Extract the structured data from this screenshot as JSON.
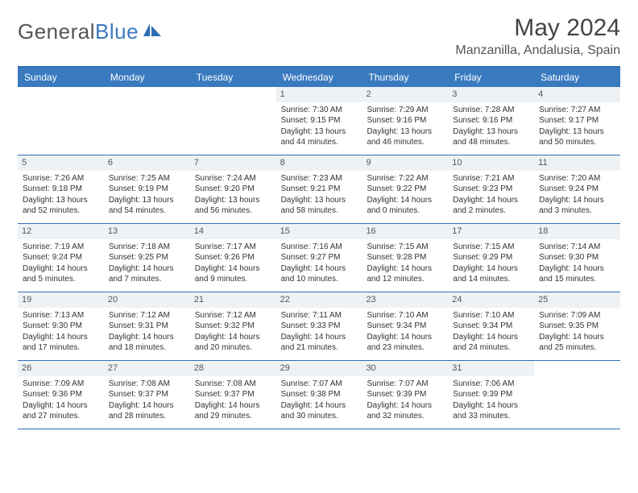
{
  "brand": {
    "part1": "General",
    "part2": "Blue"
  },
  "title": "May 2024",
  "subtitle": "Manzanilla, Andalusia, Spain",
  "colors": {
    "header_bar": "#3a7abf",
    "border": "#2e6fb4",
    "daynum_bg": "#eef2f5",
    "text": "#333333"
  },
  "dow": [
    "Sunday",
    "Monday",
    "Tuesday",
    "Wednesday",
    "Thursday",
    "Friday",
    "Saturday"
  ],
  "weeks": [
    [
      {
        "n": "",
        "sr": "",
        "ss": "",
        "dl": "",
        "empty": true
      },
      {
        "n": "",
        "sr": "",
        "ss": "",
        "dl": "",
        "empty": true
      },
      {
        "n": "",
        "sr": "",
        "ss": "",
        "dl": "",
        "empty": true
      },
      {
        "n": "1",
        "sr": "Sunrise: 7:30 AM",
        "ss": "Sunset: 9:15 PM",
        "dl": "Daylight: 13 hours and 44 minutes."
      },
      {
        "n": "2",
        "sr": "Sunrise: 7:29 AM",
        "ss": "Sunset: 9:16 PM",
        "dl": "Daylight: 13 hours and 46 minutes."
      },
      {
        "n": "3",
        "sr": "Sunrise: 7:28 AM",
        "ss": "Sunset: 9:16 PM",
        "dl": "Daylight: 13 hours and 48 minutes."
      },
      {
        "n": "4",
        "sr": "Sunrise: 7:27 AM",
        "ss": "Sunset: 9:17 PM",
        "dl": "Daylight: 13 hours and 50 minutes."
      }
    ],
    [
      {
        "n": "5",
        "sr": "Sunrise: 7:26 AM",
        "ss": "Sunset: 9:18 PM",
        "dl": "Daylight: 13 hours and 52 minutes."
      },
      {
        "n": "6",
        "sr": "Sunrise: 7:25 AM",
        "ss": "Sunset: 9:19 PM",
        "dl": "Daylight: 13 hours and 54 minutes."
      },
      {
        "n": "7",
        "sr": "Sunrise: 7:24 AM",
        "ss": "Sunset: 9:20 PM",
        "dl": "Daylight: 13 hours and 56 minutes."
      },
      {
        "n": "8",
        "sr": "Sunrise: 7:23 AM",
        "ss": "Sunset: 9:21 PM",
        "dl": "Daylight: 13 hours and 58 minutes."
      },
      {
        "n": "9",
        "sr": "Sunrise: 7:22 AM",
        "ss": "Sunset: 9:22 PM",
        "dl": "Daylight: 14 hours and 0 minutes."
      },
      {
        "n": "10",
        "sr": "Sunrise: 7:21 AM",
        "ss": "Sunset: 9:23 PM",
        "dl": "Daylight: 14 hours and 2 minutes."
      },
      {
        "n": "11",
        "sr": "Sunrise: 7:20 AM",
        "ss": "Sunset: 9:24 PM",
        "dl": "Daylight: 14 hours and 3 minutes."
      }
    ],
    [
      {
        "n": "12",
        "sr": "Sunrise: 7:19 AM",
        "ss": "Sunset: 9:24 PM",
        "dl": "Daylight: 14 hours and 5 minutes."
      },
      {
        "n": "13",
        "sr": "Sunrise: 7:18 AM",
        "ss": "Sunset: 9:25 PM",
        "dl": "Daylight: 14 hours and 7 minutes."
      },
      {
        "n": "14",
        "sr": "Sunrise: 7:17 AM",
        "ss": "Sunset: 9:26 PM",
        "dl": "Daylight: 14 hours and 9 minutes."
      },
      {
        "n": "15",
        "sr": "Sunrise: 7:16 AM",
        "ss": "Sunset: 9:27 PM",
        "dl": "Daylight: 14 hours and 10 minutes."
      },
      {
        "n": "16",
        "sr": "Sunrise: 7:15 AM",
        "ss": "Sunset: 9:28 PM",
        "dl": "Daylight: 14 hours and 12 minutes."
      },
      {
        "n": "17",
        "sr": "Sunrise: 7:15 AM",
        "ss": "Sunset: 9:29 PM",
        "dl": "Daylight: 14 hours and 14 minutes."
      },
      {
        "n": "18",
        "sr": "Sunrise: 7:14 AM",
        "ss": "Sunset: 9:30 PM",
        "dl": "Daylight: 14 hours and 15 minutes."
      }
    ],
    [
      {
        "n": "19",
        "sr": "Sunrise: 7:13 AM",
        "ss": "Sunset: 9:30 PM",
        "dl": "Daylight: 14 hours and 17 minutes."
      },
      {
        "n": "20",
        "sr": "Sunrise: 7:12 AM",
        "ss": "Sunset: 9:31 PM",
        "dl": "Daylight: 14 hours and 18 minutes."
      },
      {
        "n": "21",
        "sr": "Sunrise: 7:12 AM",
        "ss": "Sunset: 9:32 PM",
        "dl": "Daylight: 14 hours and 20 minutes."
      },
      {
        "n": "22",
        "sr": "Sunrise: 7:11 AM",
        "ss": "Sunset: 9:33 PM",
        "dl": "Daylight: 14 hours and 21 minutes."
      },
      {
        "n": "23",
        "sr": "Sunrise: 7:10 AM",
        "ss": "Sunset: 9:34 PM",
        "dl": "Daylight: 14 hours and 23 minutes."
      },
      {
        "n": "24",
        "sr": "Sunrise: 7:10 AM",
        "ss": "Sunset: 9:34 PM",
        "dl": "Daylight: 14 hours and 24 minutes."
      },
      {
        "n": "25",
        "sr": "Sunrise: 7:09 AM",
        "ss": "Sunset: 9:35 PM",
        "dl": "Daylight: 14 hours and 25 minutes."
      }
    ],
    [
      {
        "n": "26",
        "sr": "Sunrise: 7:09 AM",
        "ss": "Sunset: 9:36 PM",
        "dl": "Daylight: 14 hours and 27 minutes."
      },
      {
        "n": "27",
        "sr": "Sunrise: 7:08 AM",
        "ss": "Sunset: 9:37 PM",
        "dl": "Daylight: 14 hours and 28 minutes."
      },
      {
        "n": "28",
        "sr": "Sunrise: 7:08 AM",
        "ss": "Sunset: 9:37 PM",
        "dl": "Daylight: 14 hours and 29 minutes."
      },
      {
        "n": "29",
        "sr": "Sunrise: 7:07 AM",
        "ss": "Sunset: 9:38 PM",
        "dl": "Daylight: 14 hours and 30 minutes."
      },
      {
        "n": "30",
        "sr": "Sunrise: 7:07 AM",
        "ss": "Sunset: 9:39 PM",
        "dl": "Daylight: 14 hours and 32 minutes."
      },
      {
        "n": "31",
        "sr": "Sunrise: 7:06 AM",
        "ss": "Sunset: 9:39 PM",
        "dl": "Daylight: 14 hours and 33 minutes."
      },
      {
        "n": "",
        "sr": "",
        "ss": "",
        "dl": "",
        "empty": true
      }
    ]
  ]
}
